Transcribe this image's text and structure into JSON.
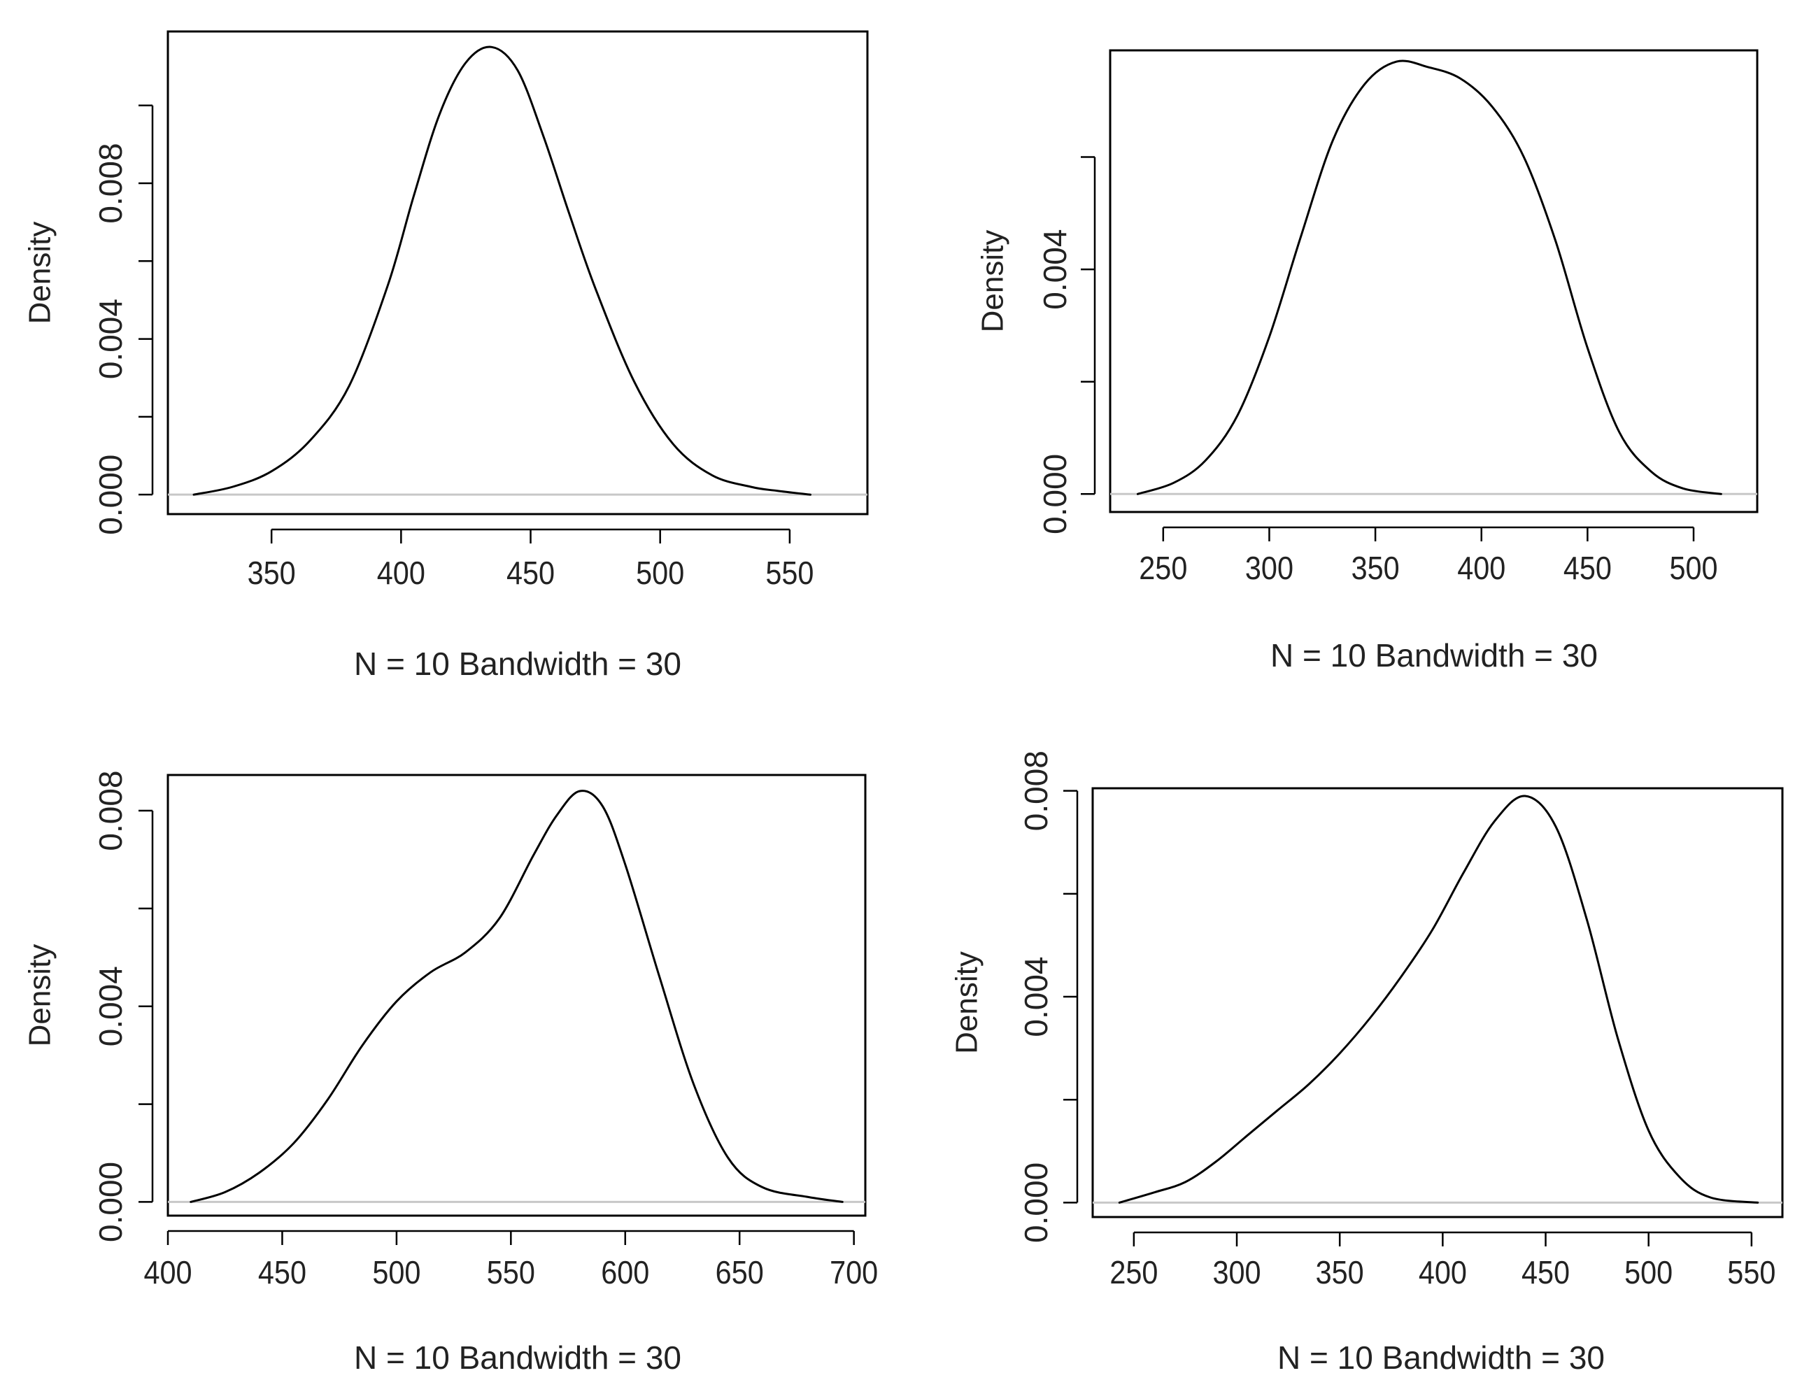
{
  "colors": {
    "curve": "#000000",
    "frame": "#000000",
    "baseline": "#c8c8c8",
    "text": "#222222"
  },
  "chart_data": [
    {
      "type": "line",
      "title": "",
      "xlabel": "N = 10   Bandwidth = 30",
      "ylabel": "Density",
      "xlim": [
        310,
        580
      ],
      "ylim": [
        -0.0005,
        0.0119
      ],
      "xticks": [
        350,
        400,
        450,
        500,
        550
      ],
      "xtick_labels": [
        "350",
        "400",
        "450",
        "500",
        "550"
      ],
      "yticks": [
        0,
        0.002,
        0.004,
        0.006,
        0.008,
        0.01
      ],
      "ytick_labels": [
        "0.000",
        "",
        "0.004",
        "",
        "0.008",
        ""
      ],
      "x": [
        320,
        335,
        350,
        365,
        380,
        395,
        405,
        415,
        425,
        435,
        445,
        455,
        465,
        475,
        490,
        505,
        520,
        535,
        545,
        558
      ],
      "y": [
        0.0,
        0.0002,
        0.0006,
        0.0014,
        0.0028,
        0.0054,
        0.0077,
        0.0098,
        0.0111,
        0.0115,
        0.0109,
        0.0092,
        0.0072,
        0.0053,
        0.0029,
        0.0013,
        0.0005,
        0.0002,
        0.0001,
        0.0
      ]
    },
    {
      "type": "line",
      "title": "",
      "xlabel": "N = 10   Bandwidth = 30",
      "ylabel": "Density",
      "xlim": [
        225,
        530
      ],
      "ylim": [
        -0.00032,
        0.0079
      ],
      "xticks": [
        250,
        300,
        350,
        400,
        450,
        500
      ],
      "xtick_labels": [
        "250",
        "300",
        "350",
        "400",
        "450",
        "500"
      ],
      "yticks": [
        0,
        0.002,
        0.004,
        0.006
      ],
      "ytick_labels": [
        "0.000",
        "",
        "0.004",
        ""
      ],
      "x": [
        238,
        255,
        270,
        285,
        300,
        315,
        330,
        345,
        360,
        375,
        390,
        405,
        420,
        435,
        450,
        465,
        480,
        495,
        513
      ],
      "y": [
        0.0,
        0.0002,
        0.0006,
        0.0014,
        0.0028,
        0.0046,
        0.0063,
        0.0073,
        0.0077,
        0.0076,
        0.0074,
        0.0069,
        0.006,
        0.0045,
        0.0026,
        0.0011,
        0.0004,
        0.0001,
        0.0
      ]
    },
    {
      "type": "line",
      "title": "",
      "xlabel": "N = 10   Bandwidth = 30",
      "ylabel": "Density",
      "xlim": [
        400,
        705
      ],
      "ylim": [
        -0.00028,
        0.00873
      ],
      "xticks": [
        400,
        450,
        500,
        550,
        600,
        650,
        700
      ],
      "xtick_labels": [
        "400",
        "450",
        "500",
        "550",
        "600",
        "650",
        "700"
      ],
      "yticks": [
        0,
        0.002,
        0.004,
        0.006,
        0.008
      ],
      "ytick_labels": [
        "0.000",
        "",
        "0.004",
        "",
        "0.008"
      ],
      "x": [
        410,
        425,
        440,
        455,
        470,
        485,
        500,
        515,
        530,
        545,
        560,
        570,
        580,
        590,
        600,
        615,
        630,
        645,
        660,
        680,
        695
      ],
      "y": [
        0.0,
        0.0002,
        0.0006,
        0.0012,
        0.0021,
        0.0032,
        0.0041,
        0.0047,
        0.0051,
        0.0058,
        0.0071,
        0.0079,
        0.0084,
        0.0081,
        0.0069,
        0.0046,
        0.0024,
        0.0009,
        0.0003,
        0.0001,
        0.0
      ]
    },
    {
      "type": "line",
      "title": "",
      "xlabel": "N = 10   Bandwidth = 30",
      "ylabel": "Density",
      "xlim": [
        230,
        565
      ],
      "ylim": [
        -0.00028,
        0.00805
      ],
      "xticks": [
        250,
        300,
        350,
        400,
        450,
        500,
        550
      ],
      "xtick_labels": [
        "250",
        "300",
        "350",
        "400",
        "450",
        "500",
        "550"
      ],
      "yticks": [
        0,
        0.002,
        0.004,
        0.006,
        0.008
      ],
      "ytick_labels": [
        "0.000",
        "",
        "0.004",
        "",
        "0.008"
      ],
      "x": [
        243,
        260,
        275,
        290,
        305,
        320,
        335,
        350,
        365,
        380,
        395,
        410,
        425,
        440,
        455,
        470,
        485,
        500,
        515,
        530,
        553
      ],
      "y": [
        0.0,
        0.0002,
        0.0004,
        0.0008,
        0.0013,
        0.0018,
        0.0023,
        0.0029,
        0.0036,
        0.0044,
        0.0053,
        0.0064,
        0.0074,
        0.0079,
        0.0073,
        0.0055,
        0.0032,
        0.0014,
        0.0005,
        0.0001,
        0.0
      ]
    }
  ]
}
